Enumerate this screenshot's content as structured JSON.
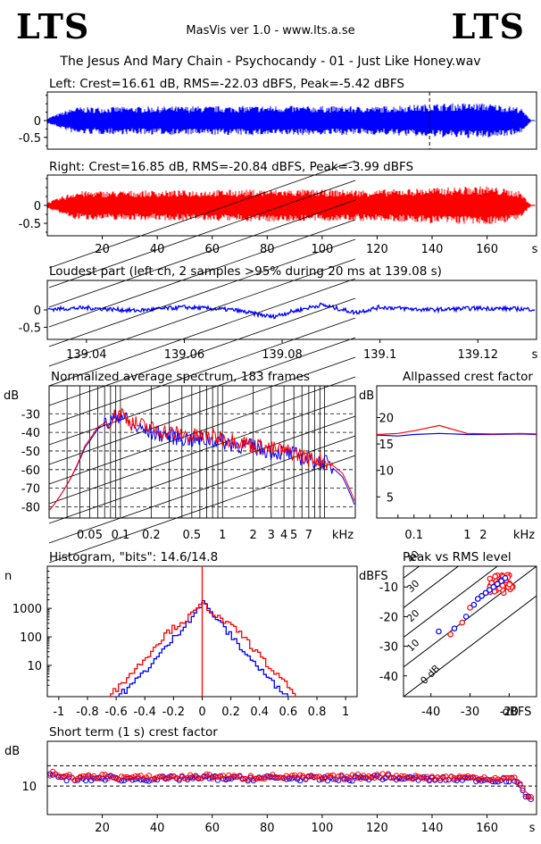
{
  "header": {
    "logo_left": "LTS",
    "logo_right": "LTS",
    "app_title": "MasVis ver 1.0 - www.lts.a.se",
    "file_title": "The Jesus And Mary Chain - Psychocandy - 01 - Just Like Honey.wav"
  },
  "colors": {
    "left": "#0000ff",
    "right": "#ff0000",
    "frame": "#000000",
    "background": "#ffffff"
  },
  "chart_data": [
    {
      "id": "left-waveform",
      "type": "area",
      "title": "Left: Crest=16.61 dB, RMS=-22.03 dBFS, Peak=-5.42 dBFS",
      "series": [
        {
          "name": "Left",
          "envelope_x_s": [
            0,
            10,
            40,
            80,
            120,
            140,
            150,
            160,
            172,
            176
          ],
          "envelope_peak": [
            0.08,
            0.4,
            0.42,
            0.44,
            0.42,
            0.5,
            0.52,
            0.52,
            0.4,
            0.02
          ]
        }
      ],
      "yticks": [
        0,
        -0.5
      ],
      "ylim": [
        -0.85,
        0.85
      ],
      "xlim": [
        0,
        178
      ],
      "marker_line_s": 139.08
    },
    {
      "id": "right-waveform",
      "type": "area",
      "title": "Right: Crest=16.85 dB, RMS=-20.84 dBFS, Peak=-3.99 dBFS",
      "series": [
        {
          "name": "Right",
          "envelope_x_s": [
            0,
            10,
            40,
            80,
            120,
            140,
            150,
            160,
            172,
            176
          ],
          "envelope_peak": [
            0.08,
            0.4,
            0.42,
            0.45,
            0.44,
            0.5,
            0.52,
            0.55,
            0.4,
            0.02
          ]
        }
      ],
      "yticks": [
        0,
        -0.5
      ],
      "ylim": [
        -0.85,
        0.85
      ],
      "xlim": [
        0,
        178
      ],
      "xticks": [
        "20",
        "40",
        "60",
        "80",
        "100",
        "120",
        "140",
        "160",
        "s"
      ]
    },
    {
      "id": "loudest-part",
      "type": "line",
      "title": "Loudest part (left  ch, 2 samples >95% during 20 ms at 139.08 s)",
      "yticks": [
        0,
        -0.5
      ],
      "ylim": [
        -0.85,
        0.85
      ],
      "xlim": [
        139.032,
        139.132
      ],
      "xticks": [
        "139.04",
        "139.06",
        "139.08",
        "139.1",
        "139.12",
        "s"
      ],
      "series": [
        {
          "name": "Left",
          "x": [
            139.032,
            139.04,
            139.05,
            139.06,
            139.07,
            139.078,
            139.082,
            139.088,
            139.095,
            139.1,
            139.11,
            139.12,
            139.132
          ],
          "y": [
            0.02,
            0.06,
            -0.02,
            0.08,
            0.0,
            -0.2,
            -0.05,
            0.15,
            -0.08,
            0.08,
            0.0,
            0.05,
            0.02
          ]
        }
      ]
    },
    {
      "id": "spectrum",
      "type": "line",
      "title": "Normalized average spectrum, 183 frames",
      "ylabel": "dB",
      "yticks": [
        "-30",
        "-40",
        "-50",
        "-60",
        "-70",
        "-80"
      ],
      "ylim": [
        -86,
        -15
      ],
      "xticks": [
        "0.05",
        "0.1",
        "0.2",
        "0.5",
        "1",
        "2",
        "3",
        "4",
        "5",
        "7",
        "kHz"
      ],
      "xlim_khz": [
        0.02,
        20
      ],
      "xscale": "log",
      "series": [
        {
          "name": "Left",
          "x_khz": [
            0.02,
            0.03,
            0.045,
            0.06,
            0.08,
            0.1,
            0.13,
            0.2,
            0.3,
            0.5,
            0.8,
            1,
            1.5,
            2,
            3,
            5,
            7,
            10,
            15,
            20
          ],
          "db": [
            -82,
            -68,
            -48,
            -38,
            -34,
            -30,
            -37,
            -40,
            -42,
            -44,
            -44,
            -45,
            -47,
            -48,
            -50,
            -52,
            -55,
            -56,
            -64,
            -80
          ]
        },
        {
          "name": "Right",
          "x_khz": [
            0.02,
            0.03,
            0.045,
            0.06,
            0.08,
            0.1,
            0.13,
            0.2,
            0.3,
            0.5,
            0.8,
            1,
            1.5,
            2,
            3,
            5,
            7,
            10,
            15,
            20
          ],
          "db": [
            -82,
            -68,
            -47,
            -37,
            -33,
            -29,
            -35,
            -38,
            -40,
            -42,
            -42,
            -43,
            -45,
            -47,
            -49,
            -51,
            -54,
            -55,
            -62,
            -78
          ]
        }
      ]
    },
    {
      "id": "allpassed-crest",
      "type": "line",
      "title": "Allpassed crest factor",
      "ylabel": "dB",
      "yticks": [
        "20",
        "15",
        "10",
        "5"
      ],
      "ylim": [
        1,
        26
      ],
      "xticks": [
        "0.1",
        "1",
        "2",
        "kHz"
      ],
      "xlim_khz": [
        0.02,
        20
      ],
      "xscale": "log",
      "series": [
        {
          "name": "Left",
          "x_khz": [
            0.02,
            0.05,
            0.1,
            0.3,
            1,
            3,
            10,
            20
          ],
          "y": [
            16.7,
            16.5,
            16.8,
            17.0,
            16.8,
            16.8,
            16.9,
            16.8
          ]
        },
        {
          "name": "Right",
          "x_khz": [
            0.02,
            0.05,
            0.1,
            0.3,
            1,
            3,
            10,
            20
          ],
          "y": [
            16.8,
            17.0,
            17.5,
            18.5,
            17.0,
            16.9,
            17.0,
            16.9
          ]
        }
      ]
    },
    {
      "id": "histogram",
      "type": "line",
      "title": "Histogram, \"bits\": 14.6/14.8",
      "ylabel": "n",
      "yticks": [
        "1000",
        "100",
        "10"
      ],
      "yscale": "log",
      "ylim": [
        0.8,
        30000
      ],
      "xticks": [
        "-1",
        "-0.8",
        "-0.6",
        "-0.4",
        "-0.2",
        "0",
        "0.2",
        "0.4",
        "0.6",
        "0.8",
        "1"
      ],
      "xlim": [
        -1.08,
        1.08
      ],
      "series": [
        {
          "name": "Left",
          "x": [
            -0.58,
            -0.5,
            -0.4,
            -0.3,
            -0.2,
            -0.1,
            0,
            0.1,
            0.2,
            0.3,
            0.4,
            0.5,
            0.58
          ],
          "y": [
            1,
            2,
            7,
            25,
            100,
            400,
            1600,
            400,
            100,
            25,
            7,
            2,
            1
          ]
        },
        {
          "name": "Right",
          "x": [
            -0.64,
            -0.55,
            -0.45,
            -0.35,
            -0.25,
            -0.1,
            0,
            0.1,
            0.25,
            0.35,
            0.45,
            0.55,
            0.64
          ],
          "y": [
            1,
            3,
            10,
            40,
            150,
            500,
            1500,
            500,
            150,
            40,
            10,
            3,
            1
          ]
        }
      ]
    },
    {
      "id": "peak-vs-rms",
      "type": "scatter",
      "title": "Peak vs RMS level",
      "ylabel": "dBFS",
      "xlabel": "dBFS",
      "yticks": [
        "-10",
        "-20",
        "-30",
        "-40"
      ],
      "xticks": [
        "-40",
        "-30",
        "-20"
      ],
      "xlim": [
        -47,
        -13
      ],
      "ylim": [
        -47,
        -3
      ],
      "diagonals": [
        "40",
        "30",
        "20",
        "10",
        "0 dB"
      ],
      "series": [
        {
          "name": "Left",
          "x": [
            -38,
            -34,
            -31,
            -29,
            -28,
            -27,
            -26,
            -25,
            -24,
            -23,
            -22,
            -21
          ],
          "y": [
            -25,
            -24,
            -20,
            -16,
            -14,
            -13,
            -12,
            -11,
            -10,
            -9,
            -8,
            -7
          ]
        },
        {
          "name": "Right",
          "x": [
            -35,
            -32,
            -30,
            -28,
            -27,
            -26,
            -25,
            -24,
            -23,
            -22,
            -21,
            -20
          ],
          "y": [
            -26,
            -22,
            -17,
            -14,
            -13,
            -12,
            -11,
            -10,
            -9,
            -8,
            -7,
            -6
          ]
        }
      ]
    },
    {
      "id": "short-term-crest",
      "type": "scatter",
      "title": "Short term (1 s) crest factor",
      "ylabel": "dB",
      "yticks": [
        "10"
      ],
      "ylim": [
        3,
        21
      ],
      "xlim": [
        0,
        178
      ],
      "xticks": [
        "20",
        "40",
        "60",
        "80",
        "100",
        "120",
        "140",
        "160",
        "s"
      ],
      "dashed_levels": [
        10,
        15
      ],
      "series": [
        {
          "name": "Left",
          "x": [
            2,
            10,
            20,
            30,
            40,
            50,
            60,
            70,
            80,
            90,
            100,
            110,
            120,
            130,
            140,
            150,
            160,
            170,
            175
          ],
          "y": [
            12.5,
            11.5,
            12.0,
            11.7,
            11.8,
            11.9,
            12.0,
            11.8,
            12.0,
            11.9,
            11.7,
            11.8,
            12.2,
            11.9,
            11.7,
            11.8,
            11.6,
            11.5,
            7.0
          ]
        },
        {
          "name": "Right",
          "x": [
            2,
            10,
            20,
            30,
            40,
            50,
            60,
            70,
            80,
            90,
            100,
            110,
            120,
            130,
            140,
            150,
            160,
            170,
            175
          ],
          "y": [
            13.0,
            12.0,
            12.4,
            12.0,
            12.1,
            12.2,
            12.4,
            12.1,
            12.3,
            12.2,
            12.0,
            12.2,
            12.6,
            12.3,
            12.0,
            12.1,
            12.0,
            11.8,
            7.5
          ]
        }
      ]
    }
  ]
}
